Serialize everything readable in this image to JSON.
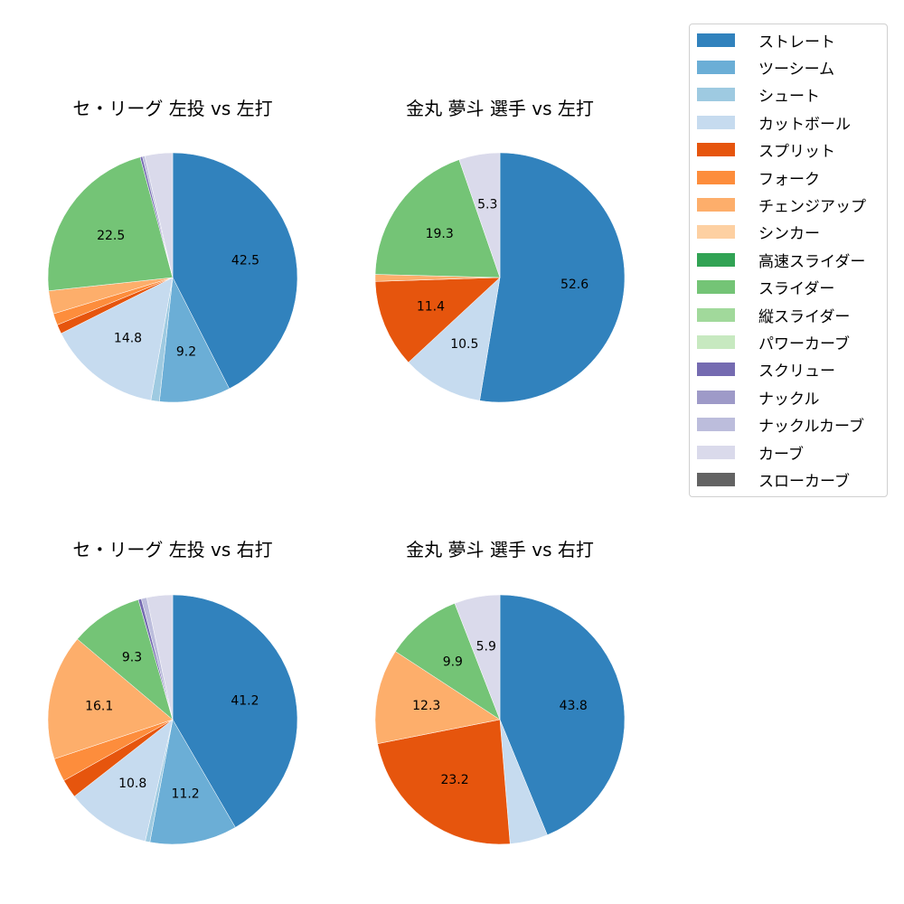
{
  "chart_data": [
    {
      "type": "pie",
      "title": "セ・リーグ 左投 vs 左打",
      "start_angle": 90,
      "direction": "clockwise",
      "slices": [
        {
          "label": "ストレート",
          "value": 42.5,
          "shown": "42.5"
        },
        {
          "label": "ツーシーム",
          "value": 9.2,
          "shown": "9.2"
        },
        {
          "label": "シュート",
          "value": 1.1,
          "shown": ""
        },
        {
          "label": "カットボール",
          "value": 14.8,
          "shown": "14.8"
        },
        {
          "label": "スプリット",
          "value": 1.2,
          "shown": ""
        },
        {
          "label": "フォーク",
          "value": 1.5,
          "shown": ""
        },
        {
          "label": "チェンジアップ",
          "value": 3.0,
          "shown": ""
        },
        {
          "label": "スライダー",
          "value": 22.5,
          "shown": "22.5"
        },
        {
          "label": "スクリュー",
          "value": 0.3,
          "shown": ""
        },
        {
          "label": "ナックルカーブ",
          "value": 0.3,
          "shown": ""
        },
        {
          "label": "カーブ",
          "value": 3.6,
          "shown": ""
        }
      ]
    },
    {
      "type": "pie",
      "title": "金丸 夢斗 選手 vs 左打",
      "start_angle": 90,
      "direction": "clockwise",
      "slices": [
        {
          "label": "ストレート",
          "value": 52.6,
          "shown": "52.6"
        },
        {
          "label": "カットボール",
          "value": 10.5,
          "shown": "10.5"
        },
        {
          "label": "スプリット",
          "value": 11.4,
          "shown": "11.4"
        },
        {
          "label": "チェンジアップ",
          "value": 0.9,
          "shown": ""
        },
        {
          "label": "スライダー",
          "value": 19.3,
          "shown": "19.3"
        },
        {
          "label": "カーブ",
          "value": 5.3,
          "shown": "5.3"
        }
      ]
    },
    {
      "type": "pie",
      "title": "セ・リーグ 左投 vs 右打",
      "start_angle": 90,
      "direction": "clockwise",
      "slices": [
        {
          "label": "ストレート",
          "value": 41.2,
          "shown": "41.2"
        },
        {
          "label": "ツーシーム",
          "value": 11.2,
          "shown": "11.2"
        },
        {
          "label": "シュート",
          "value": 0.6,
          "shown": ""
        },
        {
          "label": "カットボール",
          "value": 10.8,
          "shown": "10.8"
        },
        {
          "label": "スプリット",
          "value": 2.4,
          "shown": ""
        },
        {
          "label": "フォーク",
          "value": 3.0,
          "shown": ""
        },
        {
          "label": "チェンジアップ",
          "value": 16.1,
          "shown": "16.1"
        },
        {
          "label": "スライダー",
          "value": 9.3,
          "shown": "9.3"
        },
        {
          "label": "スクリュー",
          "value": 0.4,
          "shown": ""
        },
        {
          "label": "ナックルカーブ",
          "value": 0.7,
          "shown": ""
        },
        {
          "label": "カーブ",
          "value": 3.3,
          "shown": ""
        }
      ]
    },
    {
      "type": "pie",
      "title": "金丸 夢斗 選手 vs 右打",
      "start_angle": 90,
      "direction": "clockwise",
      "slices": [
        {
          "label": "ストレート",
          "value": 43.8,
          "shown": "43.8"
        },
        {
          "label": "カットボール",
          "value": 4.9,
          "shown": ""
        },
        {
          "label": "スプリット",
          "value": 23.2,
          "shown": "23.2"
        },
        {
          "label": "チェンジアップ",
          "value": 12.3,
          "shown": "12.3"
        },
        {
          "label": "スライダー",
          "value": 9.9,
          "shown": "9.9"
        },
        {
          "label": "カーブ",
          "value": 5.9,
          "shown": "5.9"
        }
      ]
    }
  ],
  "legend": {
    "position": "upper right",
    "items": [
      {
        "label": "ストレート",
        "color": "#3182bd"
      },
      {
        "label": "ツーシーム",
        "color": "#6baed6"
      },
      {
        "label": "シュート",
        "color": "#9ecae1"
      },
      {
        "label": "カットボール",
        "color": "#c6dbef"
      },
      {
        "label": "スプリット",
        "color": "#e6550d"
      },
      {
        "label": "フォーク",
        "color": "#fd8d3c"
      },
      {
        "label": "チェンジアップ",
        "color": "#fdae6b"
      },
      {
        "label": "シンカー",
        "color": "#fdd0a2"
      },
      {
        "label": "高速スライダー",
        "color": "#31a354"
      },
      {
        "label": "スライダー",
        "color": "#74c476"
      },
      {
        "label": "縦スライダー",
        "color": "#a1d99b"
      },
      {
        "label": "パワーカーブ",
        "color": "#c7e9c0"
      },
      {
        "label": "スクリュー",
        "color": "#756bb1"
      },
      {
        "label": "ナックル",
        "color": "#9e9ac8"
      },
      {
        "label": "ナックルカーブ",
        "color": "#bcbddc"
      },
      {
        "label": "カーブ",
        "color": "#dadaeb"
      },
      {
        "label": "スローカーブ",
        "color": "#636363"
      }
    ]
  }
}
